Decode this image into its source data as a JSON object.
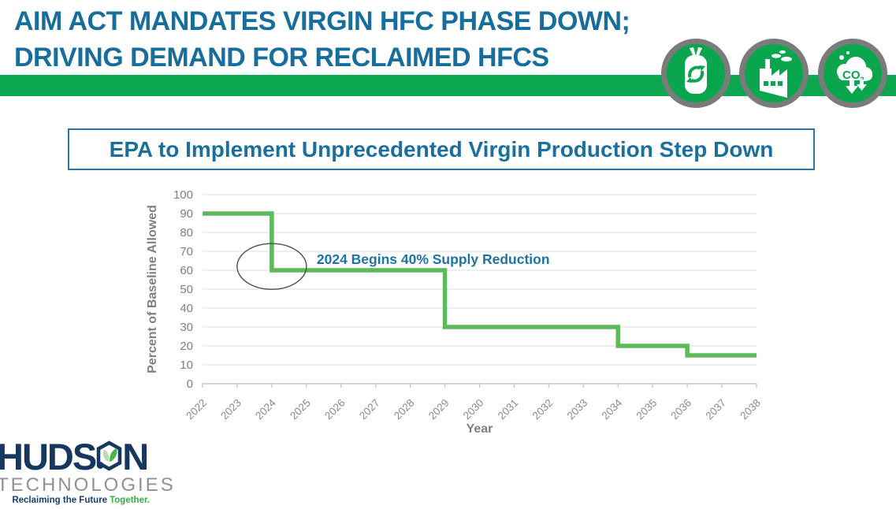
{
  "slide": {
    "title_line1": "AIM ACT MANDATES VIRGIN HFC PHASE DOWN;",
    "title_line2": "DRIVING DEMAND FOR RECLAIMED HFCS",
    "subtitle": "EPA to Implement Unprecedented Virgin Production Step Down"
  },
  "icons": [
    {
      "name": "refrigerant-cylinder-recycle-icon"
    },
    {
      "name": "factory-emissions-icon"
    },
    {
      "name": "co2-reduction-icon"
    }
  ],
  "chart_data": {
    "type": "line",
    "subtype": "step",
    "xlabel": "Year",
    "ylabel": "Percent of Baseline Allowed",
    "x": [
      2022,
      2023,
      2024,
      2025,
      2026,
      2027,
      2028,
      2029,
      2030,
      2031,
      2032,
      2033,
      2034,
      2035,
      2036,
      2037,
      2038
    ],
    "values": [
      90,
      90,
      60,
      60,
      60,
      60,
      60,
      30,
      30,
      30,
      30,
      30,
      20,
      20,
      15,
      15,
      15
    ],
    "ylim": [
      0,
      100
    ],
    "ytick_step": 10,
    "grid": "horizontal",
    "line_color": "#5cb95c",
    "legend": "none",
    "annotation": {
      "text": "2024 Begins 40% Supply Reduction",
      "x": 2024,
      "y": 62,
      "color": "#1b74a4"
    }
  },
  "logo": {
    "word_part1": "HUDS",
    "word_part2": "N",
    "word2": "TECHNOLOGIES",
    "tagline_prefix": "Reclaiming the Future",
    "tagline_accent": "Together."
  },
  "colors": {
    "title_blue": "#176d9c",
    "banner_green": "#0ba84f",
    "icon_green": "#0aa64e",
    "icon_ring_gray": "#7b7b7b",
    "chart_line_green": "#5cb95c",
    "axis_gray": "#7f7f7f",
    "annotation_blue": "#1b74a4",
    "logo_navy": "#16375f",
    "logo_gray": "#8e9296",
    "tagline_green": "#3caa47"
  }
}
